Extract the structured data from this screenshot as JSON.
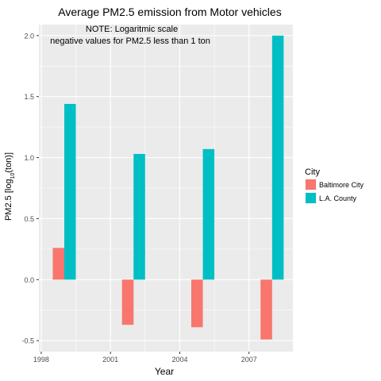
{
  "chart_data": {
    "type": "bar",
    "title": "Average PM2.5 emission from Motor vehicles",
    "xlabel": "Year",
    "ylabel_main": "PM2.5 [log",
    "ylabel_sub": "10",
    "ylabel_end": "(ton)]",
    "annotations": [
      "NOTE: Logaritmic scale",
      "negative values for PM2.5 less than 1 ton"
    ],
    "x_ticks": [
      1998,
      2001,
      2004,
      2007
    ],
    "y_ticks": [
      "-0.5",
      "0.0",
      "0.5",
      "1.0",
      "1.5",
      "2.0"
    ],
    "xlim": [
      1997.9,
      2008.9
    ],
    "ylim": [
      -0.59,
      2.09
    ],
    "categories": [
      1999,
      2002,
      2005,
      2008
    ],
    "bar_width_years": 1.0,
    "legend": {
      "title": "City",
      "position": "right"
    },
    "series": [
      {
        "name": "Baltimore City",
        "color": "#F8766D",
        "values": [
          0.26,
          -0.37,
          -0.39,
          -0.49
        ]
      },
      {
        "name": "L.A. County",
        "color": "#00BFC4",
        "values": [
          1.44,
          1.03,
          1.07,
          2.0
        ]
      }
    ]
  }
}
